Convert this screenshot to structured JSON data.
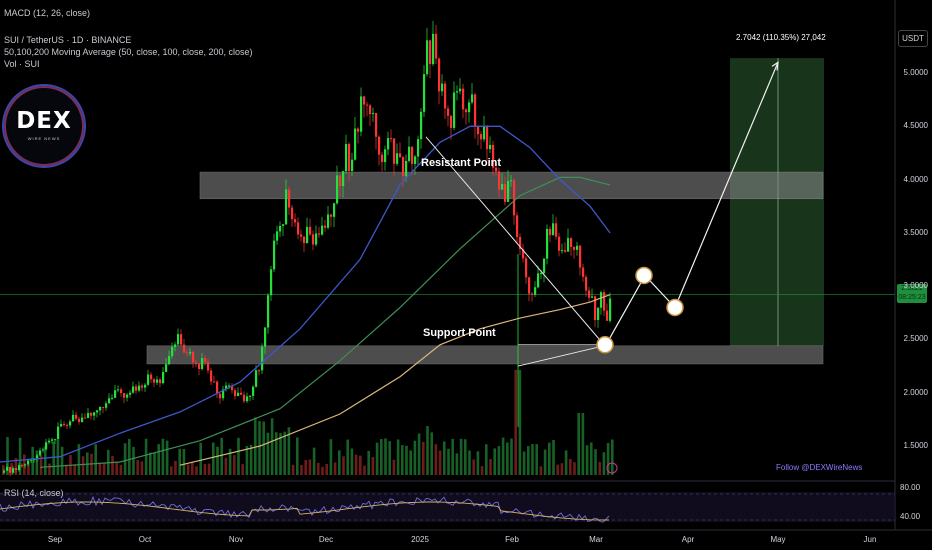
{
  "header": {
    "macd": "MACD (12, 26, close)",
    "symbol": "SUI / TetherUS · 1D · BINANCE",
    "ma": "50,100,200 Moving Average (50, close, 100, close, 200, close)",
    "vol": "Vol · SUI"
  },
  "rsi_label": "RSI (14, close)",
  "currency_badge": "USDT",
  "current_price_badge": [
    "2.9221",
    "08:25:23"
  ],
  "logo": {
    "text": "DEX",
    "subtext": "WIRE NEWS"
  },
  "follow_text": "Follow @DEXWireNews",
  "target_label": "2.7042 (110.35%) 27,042",
  "zones": {
    "resistance": "Resistant Point",
    "support": "Support Point"
  },
  "rsi_axis": [
    "80.00",
    "40.00"
  ],
  "colors": {
    "up": "#22e13a",
    "down": "#ff3333",
    "ma50": "#3d58c9",
    "ma100": "#3f8f55",
    "ma200": "#d9b779",
    "zone": "#8c8c8c",
    "target_box": "#1b3a1e",
    "rsi_line": "#6e6fe0",
    "rsi_ma": "#d2b467"
  },
  "chart_data": {
    "type": "candlestick",
    "title": "SUI / TetherUS · 1D · BINANCE",
    "y_axis": {
      "ticks": [
        1.5,
        2.0,
        2.5,
        3.0,
        3.5,
        4.0,
        4.5,
        5.0
      ],
      "labels": [
        "1.5000",
        "2.0000",
        "2.5000",
        "3.0000",
        "3.5000",
        "4.0000",
        "4.5000",
        "5.0000"
      ],
      "range": [
        1.25,
        5.5
      ]
    },
    "x_axis": {
      "labels": [
        "Sep",
        "Oct",
        "Nov",
        "Dec",
        "2025",
        "Feb",
        "Mar",
        "Apr",
        "May",
        "Jun"
      ]
    },
    "price_path": [
      [
        0,
        1.25
      ],
      [
        20,
        1.32
      ],
      [
        40,
        1.45
      ],
      [
        55,
        1.62
      ],
      [
        70,
        1.75
      ],
      [
        85,
        1.72
      ],
      [
        92,
        1.85
      ],
      [
        100,
        1.92
      ],
      [
        108,
        1.9
      ],
      [
        118,
        2.02
      ],
      [
        128,
        2.0
      ],
      [
        140,
        2.05
      ],
      [
        148,
        2.15
      ],
      [
        158,
        2.1
      ],
      [
        166,
        2.22
      ],
      [
        172,
        2.45
      ],
      [
        178,
        2.52
      ],
      [
        182,
        2.32
      ],
      [
        188,
        2.38
      ],
      [
        196,
        2.28
      ],
      [
        204,
        2.3
      ],
      [
        212,
        2.05
      ],
      [
        220,
        2.0
      ],
      [
        228,
        2.08
      ],
      [
        236,
        1.95
      ],
      [
        244,
        1.9
      ],
      [
        252,
        2.08
      ],
      [
        258,
        2.25
      ],
      [
        262,
        2.5
      ],
      [
        268,
        3.05
      ],
      [
        274,
        3.45
      ],
      [
        280,
        3.6
      ],
      [
        286,
        3.85
      ],
      [
        292,
        3.65
      ],
      [
        298,
        3.45
      ],
      [
        304,
        3.5
      ],
      [
        310,
        3.4
      ],
      [
        318,
        3.45
      ],
      [
        326,
        3.55
      ],
      [
        332,
        3.85
      ],
      [
        338,
        4.0
      ],
      [
        344,
        4.3
      ],
      [
        350,
        4.1
      ],
      [
        356,
        4.5
      ],
      [
        362,
        4.85
      ],
      [
        368,
        4.75
      ],
      [
        374,
        4.6
      ],
      [
        380,
        4.2
      ],
      [
        386,
        4.4
      ],
      [
        392,
        4.3
      ],
      [
        398,
        4.1
      ],
      [
        404,
        4.15
      ],
      [
        410,
        4.25
      ],
      [
        416,
        4.35
      ],
      [
        420,
        4.7
      ],
      [
        426,
        5.2
      ],
      [
        432,
        5.25
      ],
      [
        438,
        4.95
      ],
      [
        444,
        4.75
      ],
      [
        450,
        4.6
      ],
      [
        456,
        4.85
      ],
      [
        462,
        4.7
      ],
      [
        468,
        4.8
      ],
      [
        474,
        4.6
      ],
      [
        480,
        4.45
      ],
      [
        486,
        4.4
      ],
      [
        492,
        4.15
      ],
      [
        498,
        3.95
      ],
      [
        504,
        3.75
      ],
      [
        510,
        4.0
      ],
      [
        516,
        3.5
      ],
      [
        522,
        3.25
      ],
      [
        528,
        3.0
      ],
      [
        534,
        2.95
      ],
      [
        540,
        3.15
      ],
      [
        546,
        3.55
      ],
      [
        552,
        3.5
      ],
      [
        558,
        3.35
      ],
      [
        564,
        3.25
      ],
      [
        570,
        3.45
      ],
      [
        576,
        3.4
      ],
      [
        582,
        3.1
      ],
      [
        588,
        2.9
      ],
      [
        594,
        2.75
      ],
      [
        600,
        3.0
      ],
      [
        606,
        2.6
      ],
      [
        610,
        2.92
      ]
    ],
    "ma50_path": [
      [
        0,
        1.35
      ],
      [
        60,
        1.4
      ],
      [
        120,
        1.62
      ],
      [
        180,
        1.82
      ],
      [
        240,
        2.1
      ],
      [
        300,
        2.6
      ],
      [
        360,
        3.25
      ],
      [
        400,
        3.95
      ],
      [
        440,
        4.35
      ],
      [
        470,
        4.5
      ],
      [
        500,
        4.5
      ],
      [
        530,
        4.3
      ],
      [
        560,
        4.0
      ],
      [
        590,
        3.75
      ],
      [
        610,
        3.5
      ]
    ],
    "ma100_path": [
      [
        40,
        1.3
      ],
      [
        120,
        1.35
      ],
      [
        200,
        1.55
      ],
      [
        280,
        1.85
      ],
      [
        340,
        2.3
      ],
      [
        400,
        2.8
      ],
      [
        460,
        3.35
      ],
      [
        520,
        3.85
      ],
      [
        560,
        4.02
      ],
      [
        580,
        4.02
      ],
      [
        610,
        3.95
      ]
    ],
    "ma200_path": [
      [
        180,
        1.32
      ],
      [
        260,
        1.5
      ],
      [
        340,
        1.8
      ],
      [
        400,
        2.15
      ],
      [
        440,
        2.45
      ],
      [
        480,
        2.6
      ],
      [
        520,
        2.7
      ],
      [
        560,
        2.78
      ],
      [
        590,
        2.85
      ],
      [
        610,
        2.92
      ]
    ],
    "resistance_zone": [
      3.82,
      4.07
    ],
    "support_zone": [
      2.27,
      2.44
    ],
    "projection": [
      [
        606,
        2.45
      ],
      [
        645,
        3.1
      ],
      [
        675,
        2.8
      ],
      [
        778,
        5.1
      ]
    ],
    "target_box": {
      "price_range": [
        2.44,
        5.14
      ]
    },
    "rsi": {
      "levels": [
        70,
        30
      ],
      "axis_labels": [
        "80.00",
        "40.00"
      ]
    }
  }
}
